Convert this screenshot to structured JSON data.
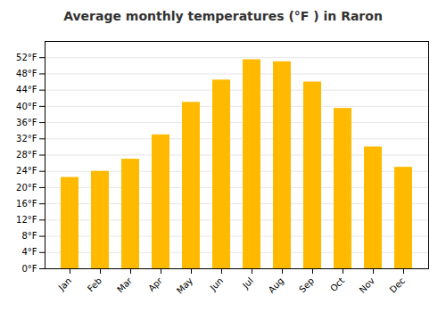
{
  "chart_data": {
    "type": "bar",
    "title": "Average monthly temperatures (°F ) in Raron",
    "categories": [
      "Jan",
      "Feb",
      "Mar",
      "Apr",
      "May",
      "Jun",
      "Jul",
      "Aug",
      "Sep",
      "Oct",
      "Nov",
      "Dec"
    ],
    "values": [
      22.5,
      24.0,
      27.0,
      33.0,
      41.0,
      46.5,
      51.5,
      51.0,
      46.0,
      39.5,
      30.0,
      25.0
    ],
    "color": "#FFBA00",
    "ylim": [
      0,
      56
    ],
    "yticks": [
      {
        "value": 0,
        "label": "0°F"
      },
      {
        "value": 4,
        "label": "4°F"
      },
      {
        "value": 8,
        "label": "8°F"
      },
      {
        "value": 12,
        "label": "12°F"
      },
      {
        "value": 16,
        "label": "16°F"
      },
      {
        "value": 20,
        "label": "20°F"
      },
      {
        "value": 24,
        "label": "24°F"
      },
      {
        "value": 28,
        "label": "28°F"
      },
      {
        "value": 32,
        "label": "32°F"
      },
      {
        "value": 36,
        "label": "36°F"
      },
      {
        "value": 40,
        "label": "40°F"
      },
      {
        "value": 44,
        "label": "44°F"
      },
      {
        "value": 48,
        "label": "48°F"
      },
      {
        "value": 52,
        "label": "52°F"
      }
    ],
    "grid": true
  }
}
